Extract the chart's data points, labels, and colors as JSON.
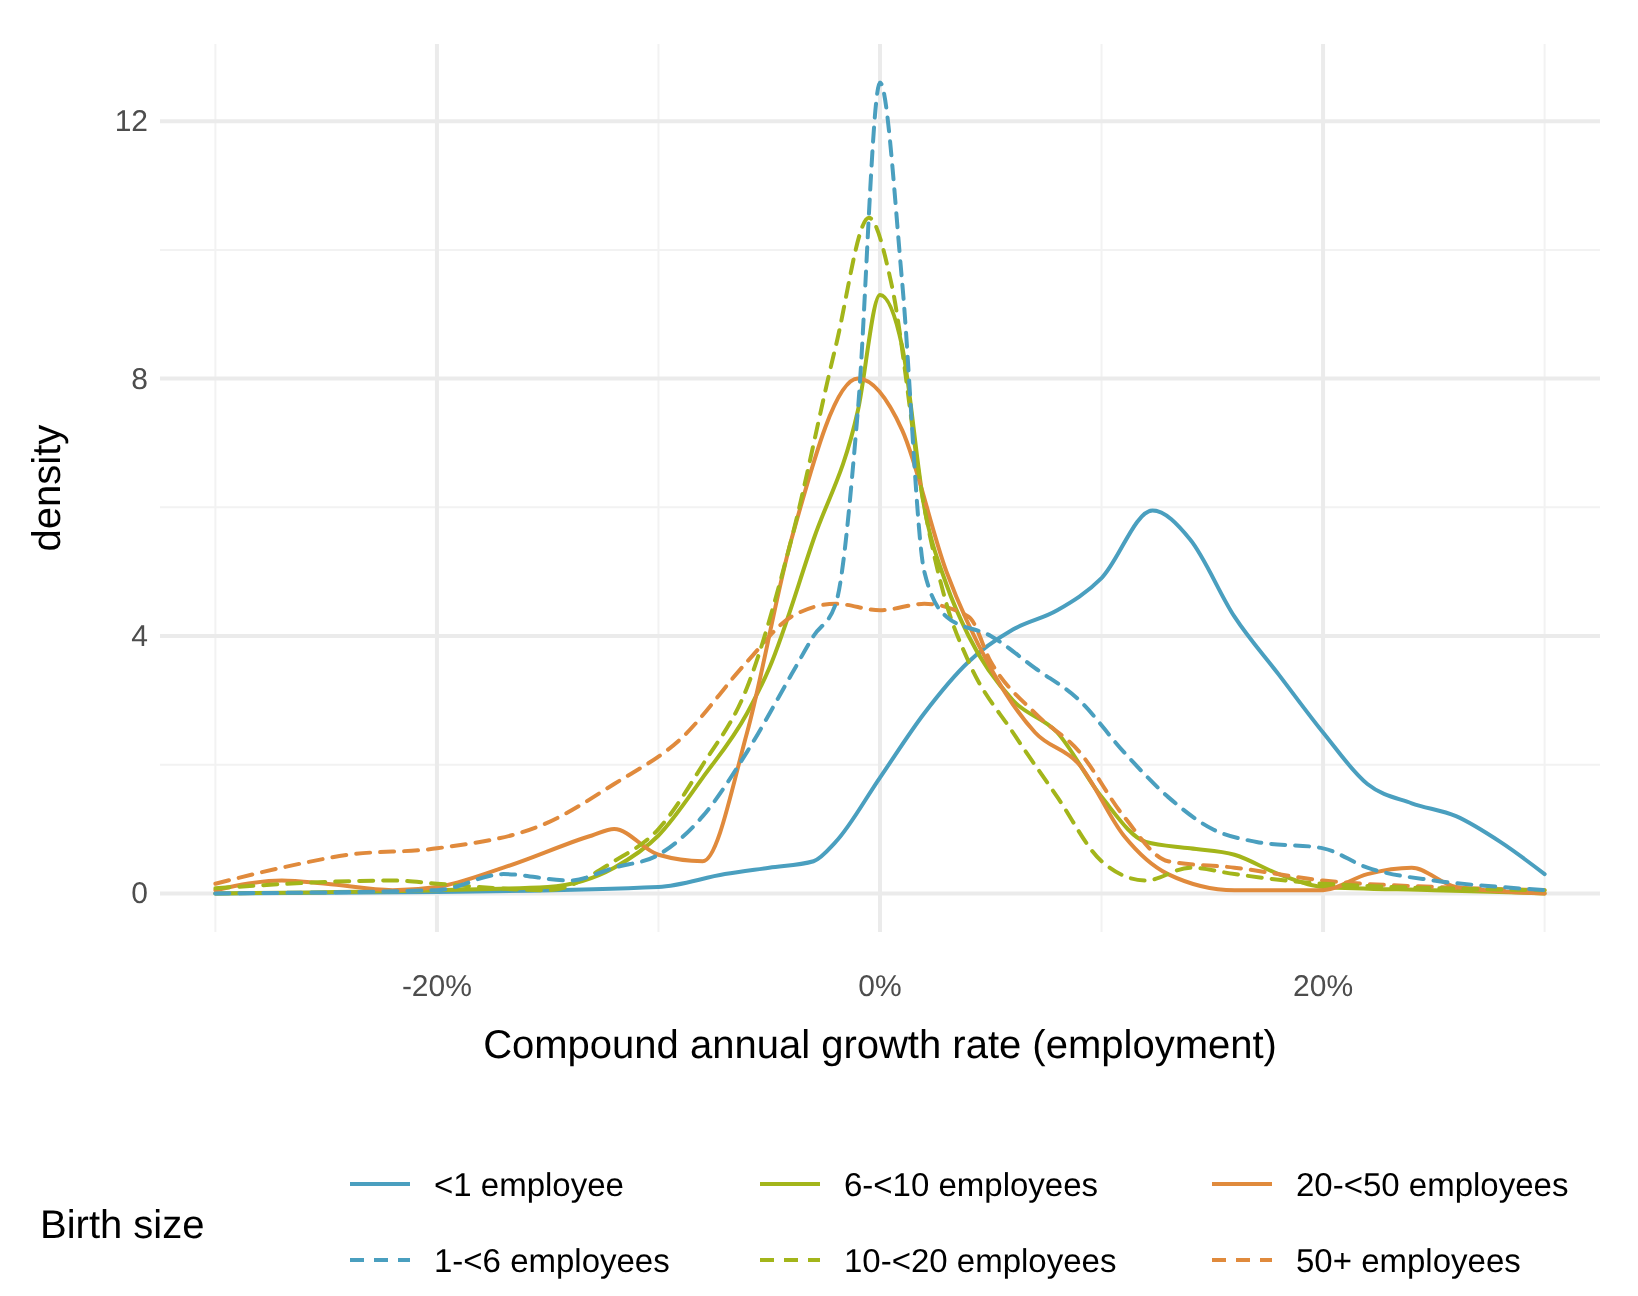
{
  "chart_data": {
    "type": "line",
    "xlabel": "Compound annual growth rate (employment)",
    "ylabel": "density",
    "legend_title": "Birth size",
    "legend": "bottom",
    "grid": true,
    "xlim": [
      -32.5,
      32.5
    ],
    "ylim": [
      -0.6,
      13.2
    ],
    "xticks": [
      {
        "value": -20,
        "label": "-20%"
      },
      {
        "value": 0,
        "label": "0%"
      },
      {
        "value": 20,
        "label": "20%"
      }
    ],
    "yticks": [
      0,
      4,
      8,
      12
    ],
    "series": [
      {
        "name": "<1 employee",
        "color": "#4a9fbf",
        "line_style": "solid",
        "x": [
          -30,
          -20,
          -10,
          -7,
          -5,
          -3,
          -2,
          0,
          2,
          4,
          6,
          8,
          10,
          12.3,
          14,
          16,
          18,
          20,
          22,
          24,
          26,
          28,
          30
        ],
        "values": [
          0,
          0.02,
          0.1,
          0.3,
          0.4,
          0.5,
          0.8,
          1.8,
          2.8,
          3.6,
          4.1,
          4.4,
          4.9,
          5.95,
          5.5,
          4.3,
          3.4,
          2.5,
          1.7,
          1.4,
          1.2,
          0.8,
          0.3
        ]
      },
      {
        "name": "1-<6 employees",
        "color": "#4a9fbf",
        "line_style": "dashed",
        "x": [
          -30,
          -20,
          -17,
          -14,
          -12,
          -10,
          -8,
          -6,
          -4,
          -3,
          -2,
          -1,
          0,
          1,
          2,
          3,
          5,
          7,
          9,
          11,
          13,
          15,
          17,
          20,
          22,
          25,
          28,
          30
        ],
        "values": [
          0,
          0.05,
          0.3,
          0.2,
          0.4,
          0.6,
          1.2,
          2.2,
          3.4,
          4,
          4.5,
          7.5,
          12.6,
          9.5,
          5,
          4.3,
          4,
          3.5,
          3,
          2.2,
          1.5,
          1,
          0.8,
          0.7,
          0.4,
          0.2,
          0.1,
          0.05
        ]
      },
      {
        "name": "6-<10 employees",
        "color": "#a3b51a",
        "line_style": "solid",
        "x": [
          -30,
          -20,
          -15,
          -12,
          -10,
          -8,
          -6,
          -5,
          -3,
          -1,
          0,
          1,
          2,
          3,
          4,
          6,
          8,
          10,
          12,
          14,
          16,
          18,
          20,
          25,
          30
        ],
        "values": [
          0,
          0.05,
          0.1,
          0.4,
          0.9,
          1.8,
          2.8,
          3.5,
          5.5,
          7.5,
          9.3,
          8.5,
          6,
          4.8,
          4,
          3,
          2.5,
          1.5,
          0.8,
          0.7,
          0.6,
          0.3,
          0.1,
          0.05,
          0
        ]
      },
      {
        "name": "10-<20 employees",
        "color": "#a3b51a",
        "line_style": "dashed",
        "x": [
          -30,
          -22,
          -20,
          -15,
          -12,
          -10,
          -8,
          -6,
          -4,
          -2,
          -0.5,
          0.5,
          2,
          3,
          4,
          6,
          8,
          10,
          12,
          14,
          16,
          20,
          30
        ],
        "values": [
          0.08,
          0.2,
          0.15,
          0.05,
          0.5,
          1,
          2,
          3.2,
          5.5,
          8.5,
          10.5,
          9.5,
          6,
          4.5,
          3.6,
          2.5,
          1.5,
          0.5,
          0.2,
          0.4,
          0.3,
          0.15,
          0.05
        ]
      },
      {
        "name": "20-<50 employees",
        "color": "#e08a3c",
        "line_style": "solid",
        "x": [
          -30,
          -27,
          -25,
          -22,
          -20,
          -17,
          -13,
          -12,
          -10,
          -8,
          -6,
          -4,
          -1,
          1,
          3,
          5,
          7,
          9,
          11,
          13,
          16,
          20,
          22,
          24,
          26,
          30
        ],
        "values": [
          0.05,
          0.2,
          0.15,
          0.05,
          0.1,
          0.4,
          0.9,
          1,
          0.6,
          0.5,
          2.5,
          5.5,
          8,
          7.2,
          5,
          3.5,
          2.5,
          2,
          0.9,
          0.3,
          0.05,
          0.05,
          0.3,
          0.4,
          0.1,
          0
        ]
      },
      {
        "name": "50+ employees",
        "color": "#e08a3c",
        "line_style": "dashed",
        "x": [
          -30,
          -27,
          -24,
          -20,
          -15,
          -12,
          -9,
          -6,
          -4,
          -2,
          0,
          2,
          4,
          5,
          7,
          9,
          11,
          13,
          16,
          20,
          25,
          30
        ],
        "values": [
          0.15,
          0.4,
          0.6,
          0.7,
          1.1,
          1.7,
          2.4,
          3.6,
          4.3,
          4.5,
          4.4,
          4.5,
          4.3,
          3.6,
          2.8,
          2.2,
          1.2,
          0.5,
          0.4,
          0.2,
          0.1,
          0.05
        ]
      }
    ]
  }
}
